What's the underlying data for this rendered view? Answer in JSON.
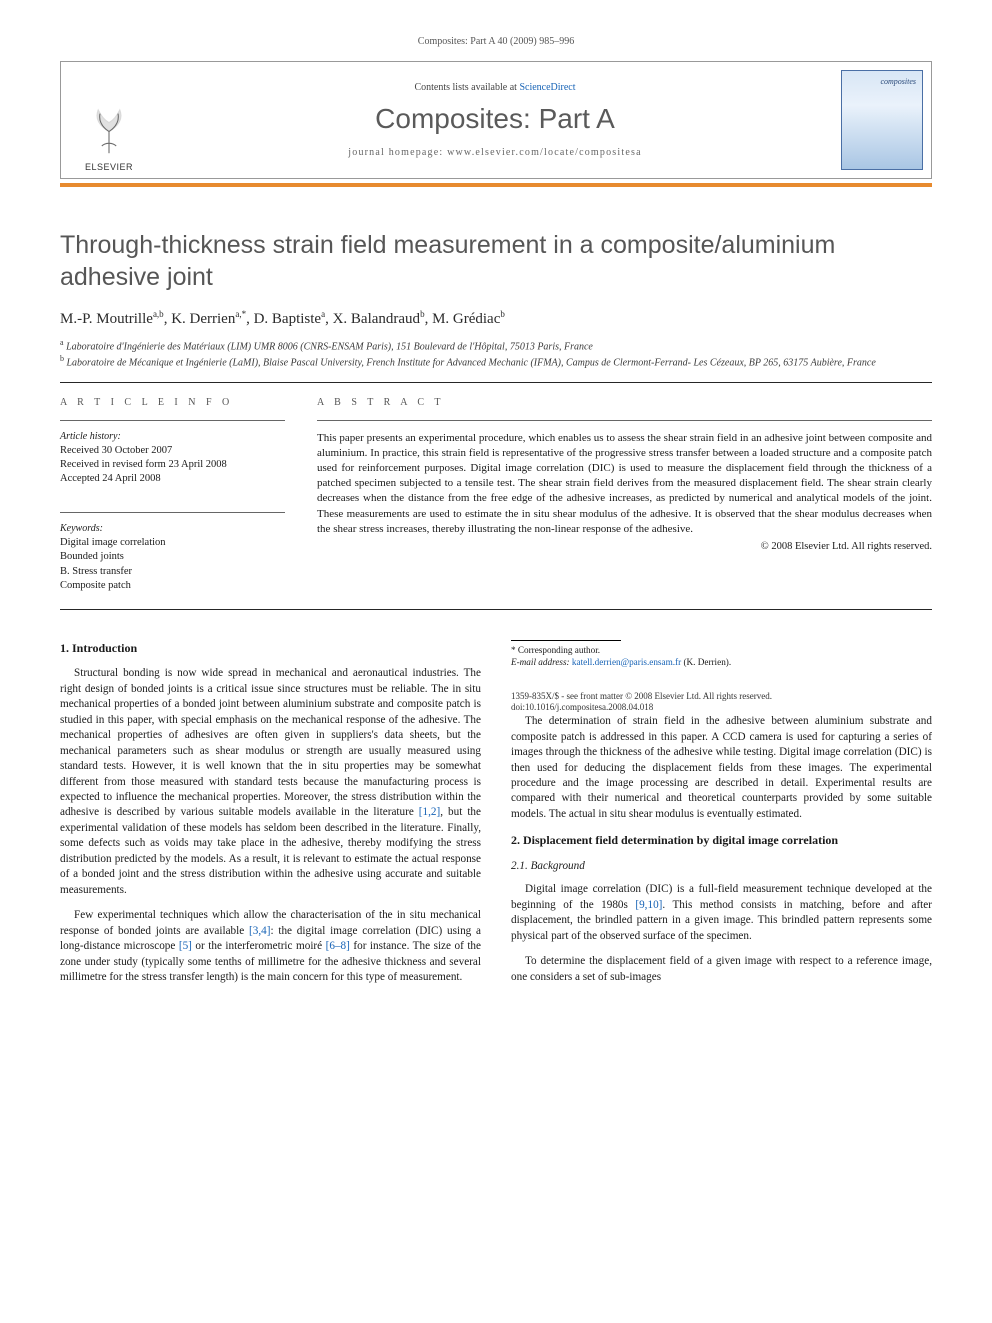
{
  "running_head": "Composites: Part A 40 (2009) 985–996",
  "banner": {
    "contents_prefix": "Contents lists available at ",
    "contents_link": "ScienceDirect",
    "journal_name": "Composites: Part A",
    "homepage_prefix": "journal homepage: ",
    "homepage_url": "www.elsevier.com/locate/compositesa",
    "elsevier": "ELSEVIER",
    "cover_word": "composites",
    "orange": "#e78a2e"
  },
  "title": "Through-thickness strain field measurement in a composite/aluminium adhesive joint",
  "authors_html": "M.-P. Moutrille ",
  "authors": [
    {
      "name": "M.-P. Moutrille",
      "sup": "a,b"
    },
    {
      "name": "K. Derrien",
      "sup": "a,*"
    },
    {
      "name": "D. Baptiste",
      "sup": "a"
    },
    {
      "name": "X. Balandraud",
      "sup": "b"
    },
    {
      "name": "M. Grédiac",
      "sup": "b"
    }
  ],
  "affiliations": [
    {
      "sup": "a",
      "text": "Laboratoire d'Ingénierie des Matériaux (LIM) UMR 8006 (CNRS-ENSAM Paris), 151 Boulevard de l'Hôpital, 75013 Paris, France"
    },
    {
      "sup": "b",
      "text": "Laboratoire de Mécanique et Ingénierie (LaMI), Blaise Pascal University, French Institute for Advanced Mechanic (IFMA), Campus de Clermont-Ferrand- Les Cézeaux, BP 265, 63175 Aubière, France"
    }
  ],
  "article_info_head": "A R T I C L E   I N F O",
  "abstract_head": "A B S T R A C T",
  "history_label": "Article history:",
  "history": [
    "Received 30 October 2007",
    "Received in revised form 23 April 2008",
    "Accepted 24 April 2008"
  ],
  "keywords_label": "Keywords:",
  "keywords": [
    "Digital image correlation",
    "Bounded joints",
    "B. Stress transfer",
    "Composite patch"
  ],
  "abstract": "This paper presents an experimental procedure, which enables us to assess the shear strain field in an adhesive joint between composite and aluminium. In practice, this strain field is representative of the progressive stress transfer between a loaded structure and a composite patch used for reinforcement purposes. Digital image correlation (DIC) is used to measure the displacement field through the thickness of a patched specimen subjected to a tensile test. The shear strain field derives from the measured displacement field. The shear strain clearly decreases when the distance from the free edge of the adhesive increases, as predicted by numerical and analytical models of the joint. These measurements are used to estimate the in situ shear modulus of the adhesive. It is observed that the shear modulus decreases when the shear stress increases, thereby illustrating the non-linear response of the adhesive.",
  "copyright": "© 2008 Elsevier Ltd. All rights reserved.",
  "sections": {
    "s1_title": "1. Introduction",
    "s1_p1": "Structural bonding is now wide spread in mechanical and aeronautical industries. The right design of bonded joints is a critical issue since structures must be reliable. The in situ mechanical properties of a bonded joint between aluminium substrate and composite patch is studied in this paper, with special emphasis on the mechanical response of the adhesive. The mechanical properties of adhesives are often given in suppliers's data sheets, but the mechanical parameters such as shear modulus or strength are usually measured using standard tests. However, it is well known that the in situ properties may be somewhat different from those measured with standard tests because the manufacturing process is expected to influence the mechanical properties. Moreover, the stress distribution within the adhesive is described by various suitable models available in the literature ",
    "s1_p1_ref1": "[1,2]",
    "s1_p1_tail": ", but the experimental validation of these models has seldom been described in the literature. Finally, some defects such as voids may take place in the adhesive, thereby modifying the stress distribution predicted by the models. As a result, it is relevant to estimate the actual response of a bonded joint and the stress distribution within the adhesive using accurate and suitable measurements.",
    "s1_p2a": "Few experimental techniques which allow the characterisation of the in situ mechanical response of bonded joints are available ",
    "s1_p2_ref1": "[3,4]",
    "s1_p2b": ": the digital image correlation (DIC) using a long-distance microscope ",
    "s1_p2_ref2": "[5]",
    "s1_p2c": " or the interferometric moiré ",
    "s1_p2_ref3": "[6–8]",
    "s1_p2d": " for instance. The size of the zone under study (typically some tenths of millimetre for the adhesive thickness and several millimetre for the stress transfer length) is the main concern for this type of measurement.",
    "s1_p3": "The determination of strain field in the adhesive between aluminium substrate and composite patch is addressed in this paper. A CCD camera is used for capturing a series of images through the thickness of the adhesive while testing. Digital image correlation (DIC) is then used for deducing the displacement fields from these images. The experimental procedure and the image processing are described in detail. Experimental results are compared with their numerical and theoretical counterparts provided by some suitable models. The actual in situ shear modulus is eventually estimated.",
    "s2_title": "2. Displacement field determination by digital image correlation",
    "s2_1_title": "2.1. Background",
    "s2_1_p1a": "Digital image correlation (DIC) is a full-field measurement technique developed at the beginning of the 1980s ",
    "s2_1_p1_ref": "[9,10]",
    "s2_1_p1b": ". This method consists in matching, before and after displacement, the brindled pattern in a given image. This brindled pattern represents some physical part of the observed surface of the specimen.",
    "s2_1_p2": "To determine the displacement field of a given image with respect to a reference image, one considers a set of sub-images"
  },
  "footnote": {
    "corr": "* Corresponding author.",
    "email_label": "E-mail address: ",
    "email": "katell.derrien@paris.ensam.fr",
    "email_tail": " (K. Derrien)."
  },
  "footer": {
    "line1": "1359-835X/$ - see front matter © 2008 Elsevier Ltd. All rights reserved.",
    "line2": "doi:10.1016/j.compositesa.2008.04.018"
  },
  "colors": {
    "link": "#1763b6",
    "title_gray": "#565656",
    "rule_orange": "#e78a2e"
  }
}
